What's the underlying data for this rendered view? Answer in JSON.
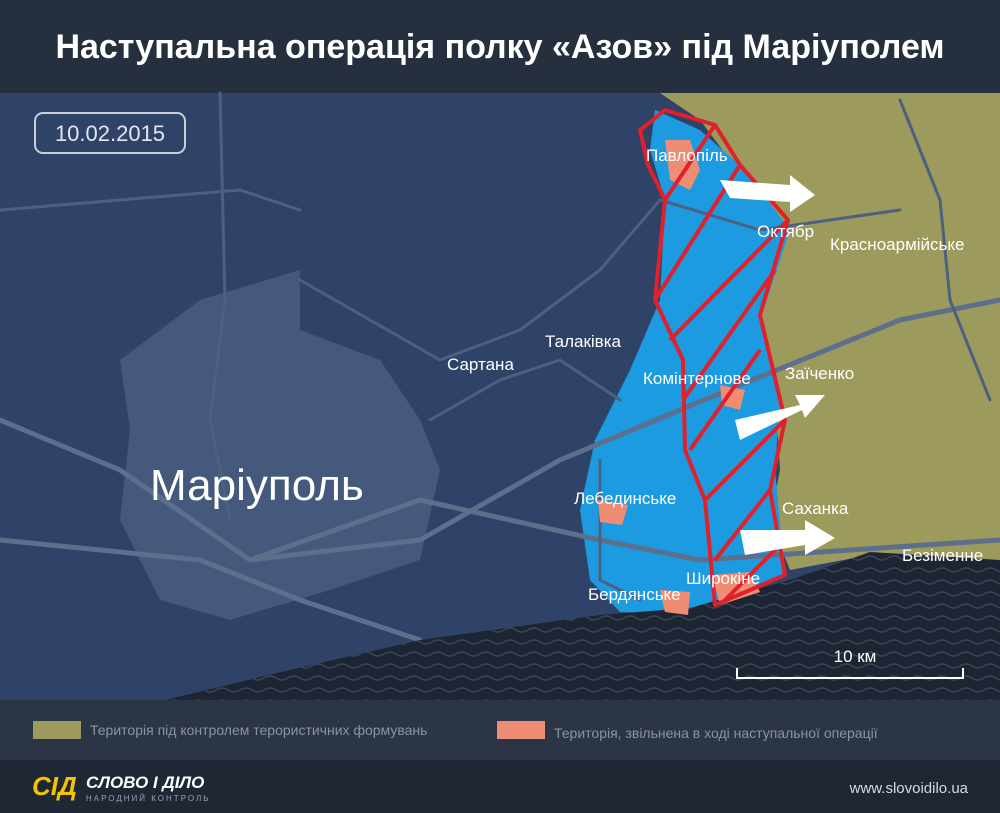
{
  "header": {
    "title": "Наступальна операція полку «Азов» під Маріуполем"
  },
  "map": {
    "date": "10.02.2015",
    "places": [
      "Павлопіль",
      "Октябр",
      "Красноармійське",
      "Талаківка",
      "Сартана",
      "Комінтернове",
      "Заїченко",
      "Маріуполь",
      "Лебединське",
      "Саханка",
      "Широкіне",
      "Бердянське",
      "Безіменне"
    ],
    "scale_label": "10 км"
  },
  "legend": {
    "items": [
      "Територія під контролем терористичних формувань",
      "Територія, звільнена в ході наступальної операції"
    ]
  },
  "footer": {
    "logo_mark": "СІД",
    "logo_name": "СЛОВО І ДІЛО",
    "logo_tagline": "НАРОДНИЙ КОНТРОЛЬ",
    "url": "www.slovoidilo.ua"
  }
}
